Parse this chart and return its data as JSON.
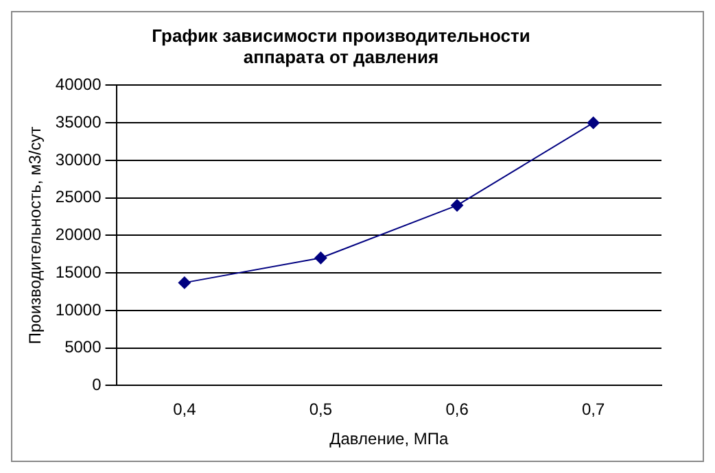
{
  "chart_data": {
    "type": "line",
    "title": "График зависимости производительности\nаппарата от давления",
    "xlabel": "Давление, МПа",
    "ylabel": "Производительность, м3/сут",
    "categories": [
      "0,4",
      "0,5",
      "0,6",
      "0,7"
    ],
    "series": [
      {
        "color": "#000080",
        "values": [
          13700,
          17000,
          24000,
          35000
        ]
      }
    ],
    "ylim": [
      0,
      40000
    ],
    "yticks": [
      0,
      5000,
      10000,
      15000,
      20000,
      25000,
      30000,
      35000,
      40000
    ],
    "grid": "y",
    "legend": false,
    "marker": "diamond",
    "line_style": "solid"
  }
}
